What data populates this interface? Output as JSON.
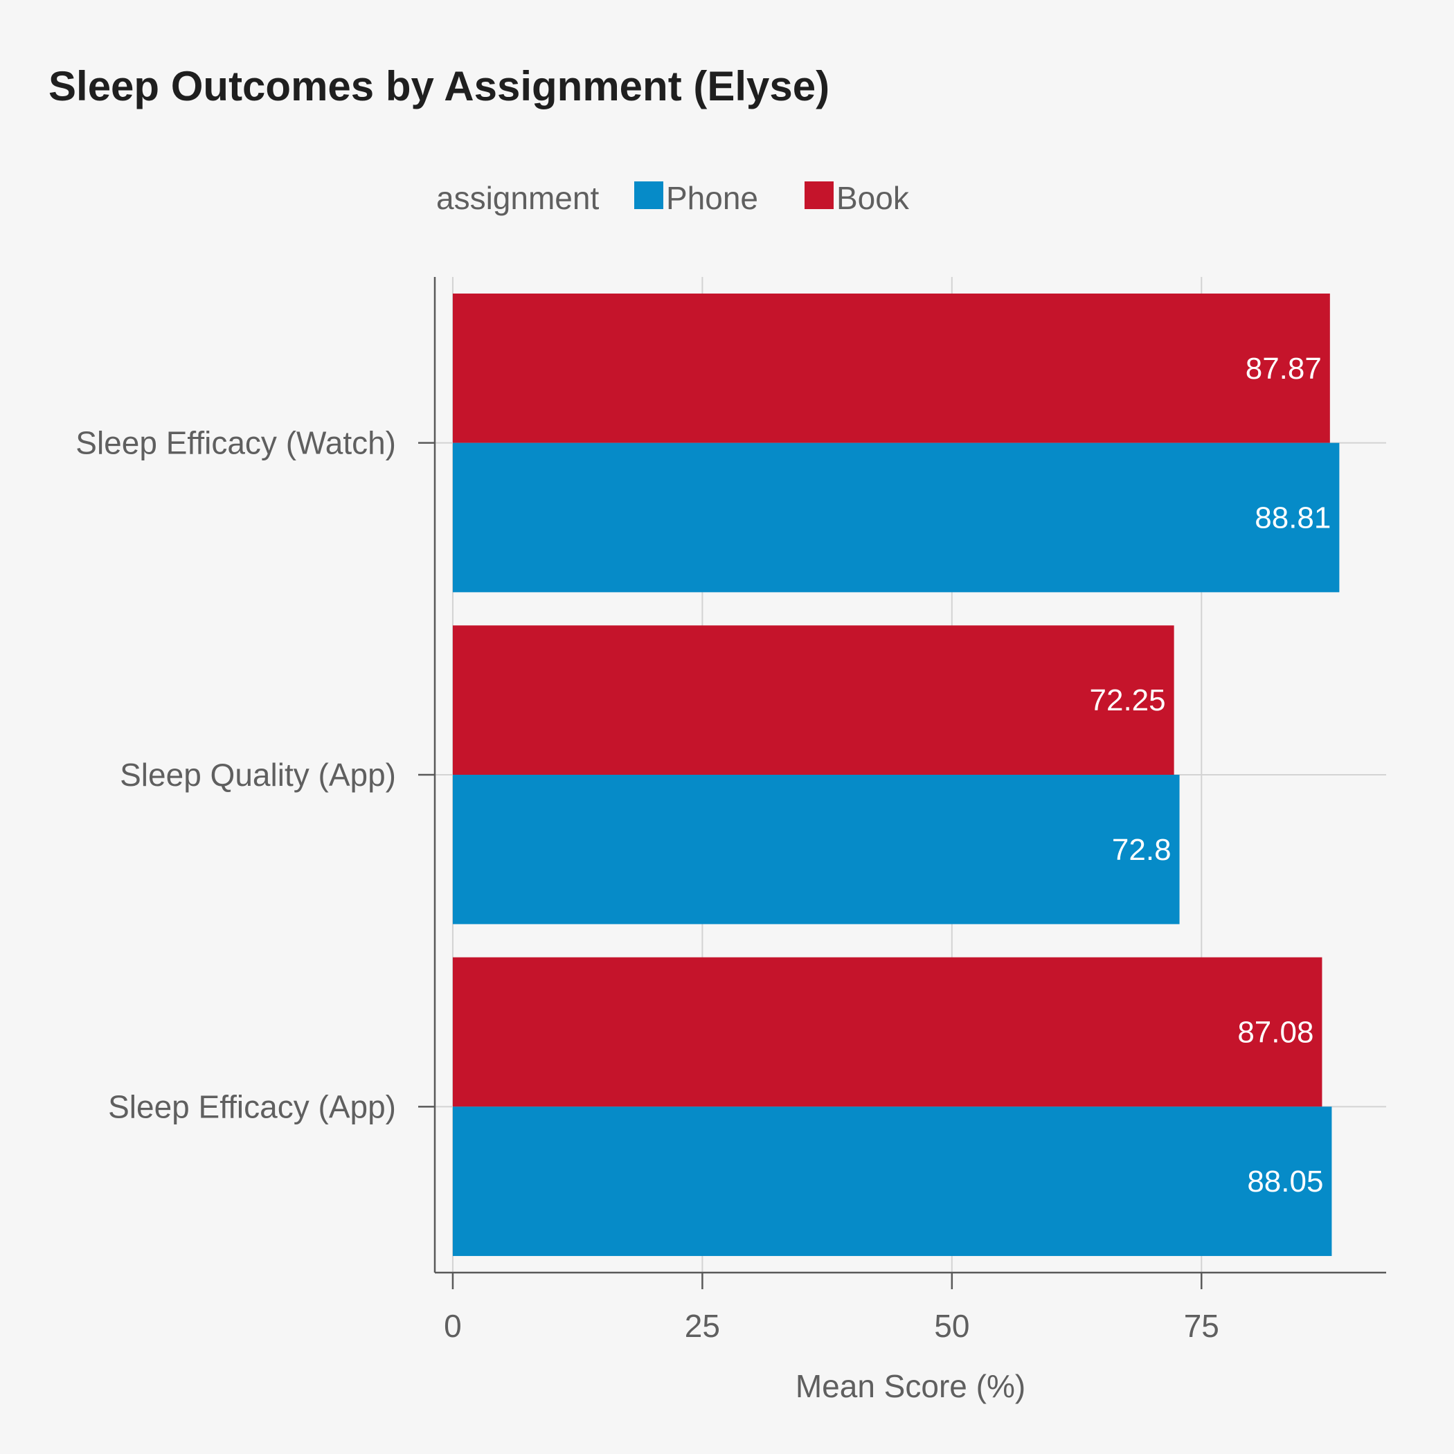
{
  "chart_data": {
    "type": "bar",
    "orientation": "horizontal",
    "title": "Sleep Outcomes by Assignment (Elyse)",
    "xlabel": "Mean Score (%)",
    "ylabel": "",
    "xlim": [
      -1.8,
      93.5
    ],
    "x_ticks": [
      0,
      25,
      50,
      75
    ],
    "grid": true,
    "legend": {
      "title": "assignment",
      "position": "top",
      "entries": [
        {
          "name": "Phone",
          "color": "#068bc8"
        },
        {
          "name": "Book",
          "color": "#c5142b"
        }
      ]
    },
    "categories": [
      "Sleep Efficacy (Watch)",
      "Sleep Quality (App)",
      "Sleep Efficacy (App)"
    ],
    "series": [
      {
        "name": "Book",
        "color": "#c5142b",
        "values": [
          87.87,
          72.25,
          87.08
        ],
        "labels": [
          "87.87",
          "72.25",
          "87.08"
        ]
      },
      {
        "name": "Phone",
        "color": "#068bc8",
        "values": [
          88.81,
          72.8,
          88.05
        ],
        "labels": [
          "88.81",
          "72.8",
          "88.05"
        ]
      }
    ]
  }
}
